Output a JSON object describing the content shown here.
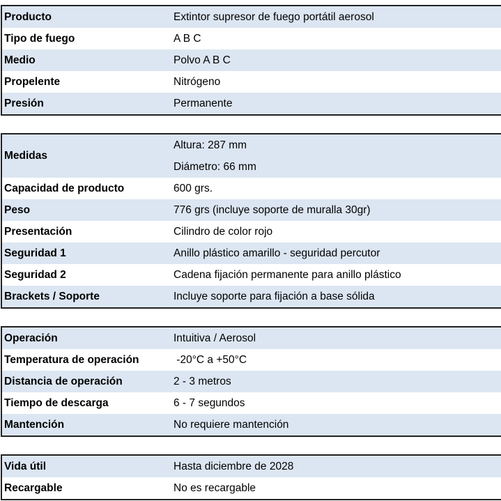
{
  "tables": [
    {
      "rows": [
        {
          "label": "Producto",
          "value": "Extintor supresor de fuego portátil aerosol"
        },
        {
          "label": "Tipo de fuego",
          "value": "A B C"
        },
        {
          "label": "Medio",
          "value": "Polvo A B C"
        },
        {
          "label": "Propelente",
          "value": "Nitrógeno"
        },
        {
          "label": "Presión",
          "value": "Permanente"
        }
      ]
    },
    {
      "medidas": {
        "label": "Medidas",
        "values": [
          "Altura: 287 mm",
          "Diámetro: 66 mm"
        ]
      },
      "rows": [
        {
          "label": "Capacidad de producto",
          "value": "600 grs."
        },
        {
          "label": "Peso",
          "value": "776 grs (incluye soporte de muralla 30gr)"
        },
        {
          "label": "Presentación",
          "value": "Cilindro de color rojo"
        },
        {
          "label": "Seguridad 1",
          "value": "Anillo plástico amarillo - seguridad percutor"
        },
        {
          "label": "Seguridad 2",
          "value": "Cadena fijación permanente para anillo plástico"
        },
        {
          "label": "Brackets / Soporte",
          "value": "Incluye soporte para fijación a base sólida"
        }
      ]
    },
    {
      "rows": [
        {
          "label": "Operación",
          "value": "Intuitiva / Aerosol"
        },
        {
          "label": "Temperatura de operación",
          "value": " -20°C a +50°C"
        },
        {
          "label": "Distancia de operación",
          "value": "2 - 3 metros"
        },
        {
          "label": "Tiempo de descarga",
          "value": "6 - 7 segundos"
        },
        {
          "label": "Mantención",
          "value": "No requiere mantención"
        }
      ]
    },
    {
      "rows": [
        {
          "label": "Vida útil",
          "value": "Hasta diciembre de 2028"
        },
        {
          "label": "Recargable",
          "value": "No es recargable"
        }
      ]
    }
  ],
  "colors": {
    "row_alt": "#dce6f2",
    "border": "#222222"
  }
}
